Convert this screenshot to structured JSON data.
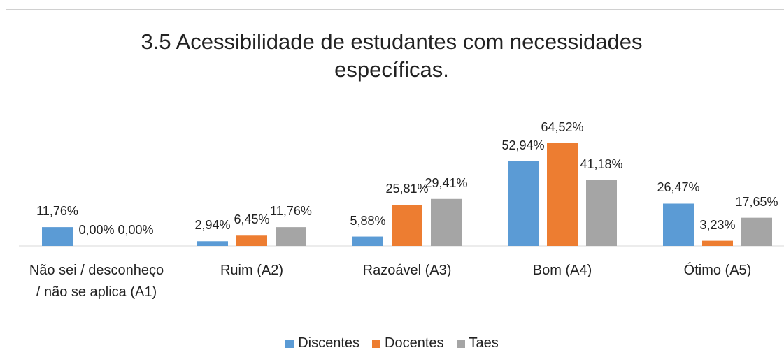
{
  "chart_data": {
    "type": "bar",
    "title": "3.5 Acessibilidade de estudantes com necessidades específicas.",
    "categories": [
      "Não sei / desconheço / não se aplica (A1)",
      "Ruim (A2)",
      "Razoável (A3)",
      "Bom (A4)",
      "Ótimo (A5)"
    ],
    "series": [
      {
        "name": "Discentes",
        "color": "#5b9bd5",
        "values": [
          11.76,
          2.94,
          5.88,
          52.94,
          26.47
        ],
        "value_labels": [
          "11,76%",
          "2,94%",
          "5,88%",
          "52,94%",
          "26,47%"
        ]
      },
      {
        "name": "Docentes",
        "color": "#ed7d31",
        "values": [
          0,
          6.45,
          25.81,
          64.52,
          3.23
        ],
        "value_labels": [
          "0,00%",
          "6,45%",
          "25,81%",
          "64,52%",
          "3,23%"
        ]
      },
      {
        "name": "Taes",
        "color": "#a5a5a5",
        "values": [
          0,
          11.76,
          29.41,
          41.18,
          17.65
        ],
        "value_labels": [
          "0,00%",
          "11,76%",
          "29,41%",
          "41,18%",
          "17,65%"
        ]
      }
    ],
    "ylim": [
      0,
      70
    ],
    "legend": "bottom"
  }
}
